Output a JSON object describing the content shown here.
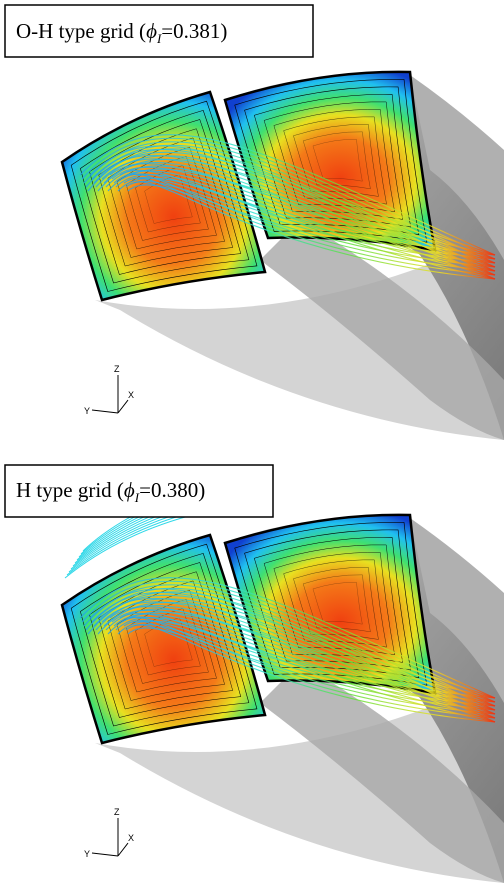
{
  "panels": [
    {
      "caption_start": "O-H type grid (",
      "symbol": "ϕ",
      "subscript": "I",
      "caption_end": "=0.381)",
      "axes": {
        "z": "Z",
        "y": "Y",
        "x": "X"
      }
    },
    {
      "caption_start": "H type grid (",
      "symbol": "ϕ",
      "subscript": "I",
      "caption_end": "=0.380)",
      "axes": {
        "z": "Z",
        "y": "Y",
        "x": "X"
      }
    }
  ]
}
